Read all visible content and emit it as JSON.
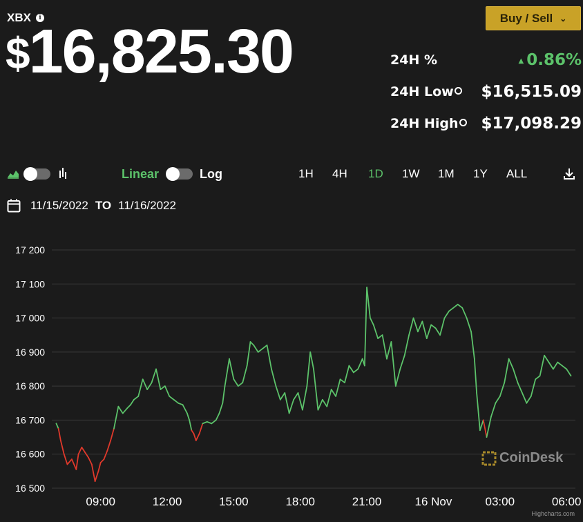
{
  "header": {
    "ticker": "XBX",
    "price": "16,825.30",
    "currency_symbol": "$",
    "buy_sell_label": "Buy / Sell"
  },
  "stats": [
    {
      "label": "24H %",
      "value": "0.86%",
      "direction": "up"
    },
    {
      "label": "24H Low",
      "value": "$16,515.09"
    },
    {
      "label": "24H High",
      "value": "$17,098.29"
    }
  ],
  "controls": {
    "scale_options": [
      "Linear",
      "Log"
    ],
    "selected_scale": "Linear",
    "ranges": [
      "1H",
      "4H",
      "1D",
      "1W",
      "1M",
      "1Y",
      "ALL"
    ],
    "selected_range": "1D"
  },
  "date_range": {
    "from": "11/15/2022",
    "separator": "TO",
    "to": "11/16/2022"
  },
  "colors": {
    "up": "#5cc26a",
    "down": "#e0392b",
    "accent": "#c9a227",
    "background": "#1b1b1b",
    "grid": "#3a3a3a"
  },
  "branding": {
    "watermark": "CoinDesk",
    "credit": "Highcharts.com"
  },
  "chart_data": {
    "type": "line",
    "ylim": [
      16500,
      17200
    ],
    "y_ticks": [
      16500,
      16600,
      16700,
      16800,
      16900,
      17000,
      17100,
      17200
    ],
    "y_tick_labels": [
      "16 500",
      "16 600",
      "16 700",
      "16 800",
      "16 900",
      "17 000",
      "17 100",
      "17 200"
    ],
    "x_range_hours": [
      6.8,
      30.4
    ],
    "x_ticks": [
      9,
      12,
      15,
      18,
      21,
      24,
      27,
      30
    ],
    "x_tick_labels": [
      "09:00",
      "12:00",
      "15:00",
      "18:00",
      "21:00",
      "16 Nov",
      "03:00",
      "06:00"
    ],
    "threshold": 16680,
    "grid": true,
    "series": [
      {
        "x": [
          7.0,
          7.1,
          7.2,
          7.35,
          7.5,
          7.7,
          7.9,
          8.0,
          8.15,
          8.3,
          8.45,
          8.6,
          8.75,
          8.9,
          9.0,
          9.15,
          9.3,
          9.45,
          9.6,
          9.8,
          10.0,
          10.2,
          10.35,
          10.5,
          10.7,
          10.9,
          11.1,
          11.3,
          11.5,
          11.7,
          11.9,
          12.1,
          12.3,
          12.5,
          12.7,
          12.9,
          13.0,
          13.1,
          13.2,
          13.3,
          13.45,
          13.6,
          13.8,
          14.0,
          14.2,
          14.35,
          14.5,
          14.6,
          14.8,
          15.0,
          15.2,
          15.4,
          15.6,
          15.75,
          15.9,
          16.1,
          16.3,
          16.5,
          16.7,
          16.9,
          17.1,
          17.3,
          17.5,
          17.7,
          17.9,
          18.1,
          18.3,
          18.45,
          18.6,
          18.8,
          19.0,
          19.2,
          19.4,
          19.6,
          19.8,
          20.0,
          20.2,
          20.4,
          20.6,
          20.8,
          20.9,
          21.0,
          21.15,
          21.3,
          21.5,
          21.7,
          21.9,
          22.1,
          22.3,
          22.5,
          22.7,
          22.9,
          23.1,
          23.3,
          23.5,
          23.7,
          23.9,
          24.1,
          24.3,
          24.5,
          24.7,
          24.9,
          25.1,
          25.3,
          25.5,
          25.7,
          25.85,
          25.95,
          26.1,
          26.25,
          26.4,
          26.6,
          26.8,
          27.0,
          27.2,
          27.4,
          27.6,
          27.8,
          28.0,
          28.2,
          28.4,
          28.6,
          28.8,
          29.0,
          29.2,
          29.4,
          29.6,
          29.8,
          30.0,
          30.2
        ],
        "values": [
          16690,
          16675,
          16640,
          16600,
          16570,
          16585,
          16555,
          16600,
          16620,
          16605,
          16590,
          16570,
          16520,
          16550,
          16575,
          16585,
          16610,
          16640,
          16675,
          16740,
          16720,
          16735,
          16745,
          16760,
          16770,
          16820,
          16790,
          16810,
          16850,
          16790,
          16800,
          16770,
          16760,
          16750,
          16745,
          16720,
          16700,
          16670,
          16660,
          16640,
          16660,
          16690,
          16695,
          16690,
          16700,
          16720,
          16750,
          16800,
          16880,
          16820,
          16800,
          16810,
          16860,
          16930,
          16920,
          16900,
          16910,
          16920,
          16850,
          16800,
          16760,
          16780,
          16720,
          16760,
          16780,
          16730,
          16800,
          16900,
          16850,
          16730,
          16760,
          16740,
          16790,
          16770,
          16820,
          16810,
          16860,
          16840,
          16850,
          16880,
          16860,
          17090,
          17000,
          16980,
          16940,
          16950,
          16880,
          16930,
          16800,
          16850,
          16890,
          16950,
          17000,
          16960,
          16990,
          16940,
          16980,
          16970,
          16950,
          17000,
          17020,
          17030,
          17040,
          17030,
          17000,
          16960,
          16880,
          16780,
          16670,
          16700,
          16650,
          16710,
          16750,
          16770,
          16810,
          16880,
          16850,
          16810,
          16780,
          16750,
          16770,
          16820,
          16830,
          16890,
          16870,
          16850,
          16870,
          16860,
          16850,
          16830
        ]
      }
    ]
  }
}
